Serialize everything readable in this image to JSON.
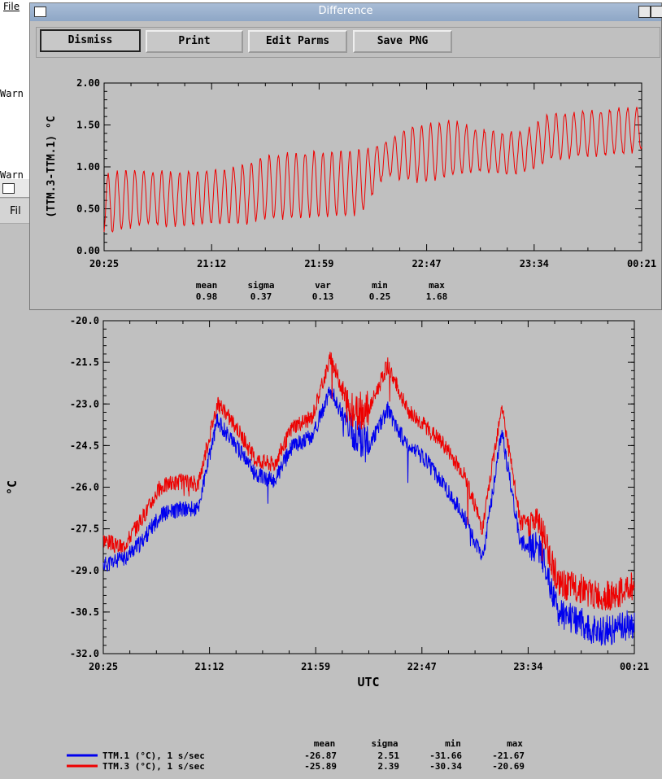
{
  "background_app": {
    "menu_file": "File",
    "warn_1": "Warn",
    "warn_2": "Warn",
    "main_menu_file": "Fil"
  },
  "dialog": {
    "title": "Difference",
    "buttons": {
      "dismiss": "Dismiss",
      "print": "Print",
      "edit_parms": "Edit Parms",
      "save_png": "Save PNG"
    }
  },
  "colors": {
    "ttm1": "#0000ee",
    "ttm3": "#ee0000",
    "plot_bg": "#c0c0c0"
  },
  "chart_data": [
    {
      "type": "line",
      "ylabel": "(TTM.3-TTM.1) °C",
      "xlabel": "",
      "x_ticks": [
        "20:25",
        "21:12",
        "21:59",
        "22:47",
        "23:34",
        "00:21"
      ],
      "y_ticks": [
        "0.00",
        "0.50",
        "1.00",
        "1.50",
        "2.00"
      ],
      "ylim": [
        0,
        2
      ],
      "grid": false,
      "series": [
        {
          "name": "TTM.3-TTM.1",
          "color": "#ee0000",
          "x": [
            "20:25",
            "20:35",
            "20:45",
            "20:55",
            "21:05",
            "21:15",
            "21:25",
            "21:35",
            "21:45",
            "21:55",
            "22:05",
            "22:15",
            "22:25",
            "22:35",
            "22:45",
            "22:55",
            "23:05",
            "23:15",
            "23:25",
            "23:35",
            "23:45",
            "23:55",
            "00:05",
            "00:15"
          ],
          "values": [
            0.55,
            0.62,
            0.63,
            0.62,
            0.63,
            0.64,
            0.68,
            0.75,
            0.78,
            0.8,
            0.8,
            0.82,
            1.1,
            1.15,
            1.18,
            1.22,
            1.2,
            1.15,
            1.18,
            1.35,
            1.38,
            1.4,
            1.42,
            1.45
          ],
          "amplitude": [
            0.35,
            0.35,
            0.32,
            0.32,
            0.32,
            0.32,
            0.35,
            0.38,
            0.38,
            0.38,
            0.38,
            0.38,
            0.2,
            0.32,
            0.35,
            0.33,
            0.25,
            0.25,
            0.25,
            0.27,
            0.27,
            0.27,
            0.27,
            0.25
          ]
        }
      ],
      "stats": {
        "headers": [
          "mean",
          "sigma",
          "var",
          "min",
          "max"
        ],
        "values": [
          "0.98",
          "0.37",
          "0.13",
          "0.25",
          "1.68"
        ]
      }
    },
    {
      "type": "line",
      "ylabel": "°C",
      "xlabel": "UTC",
      "x_ticks": [
        "20:25",
        "21:12",
        "21:59",
        "22:47",
        "23:34",
        "00:21"
      ],
      "y_ticks": [
        "-20.0",
        "-21.5",
        "-23.0",
        "-24.5",
        "-26.0",
        "-27.5",
        "-29.0",
        "-30.5",
        "-32.0"
      ],
      "ylim": [
        -32,
        -20
      ],
      "grid": false,
      "legend_position": "bottom-left",
      "categories": [
        "20:25",
        "20:35",
        "20:45",
        "20:55",
        "21:05",
        "21:10",
        "21:15",
        "21:25",
        "21:35",
        "21:45",
        "21:55",
        "22:05",
        "22:10",
        "22:15",
        "22:25",
        "22:35",
        "22:40",
        "22:45",
        "22:55",
        "23:05",
        "23:10",
        "23:15",
        "23:25",
        "23:35",
        "23:45",
        "23:55",
        "00:05",
        "00:15",
        "00:21"
      ],
      "series": [
        {
          "name": "TTM.1 (°C), 1 s/sec",
          "color": "#0000ee",
          "values": [
            -28.8,
            -28.6,
            -28.0,
            -27.0,
            -26.8,
            -26.8,
            -23.6,
            -24.5,
            -25.5,
            -25.8,
            -24.5,
            -24.2,
            -22.5,
            -24.0,
            -24.5,
            -23.2,
            -24.5,
            -25.0,
            -26.0,
            -27.0,
            -28.6,
            -24.0,
            -28.0,
            -28.2,
            -30.5,
            -30.8,
            -31.2,
            -31.1,
            -30.9
          ]
        },
        {
          "name": "TTM.3 (°C), 1 s/sec",
          "color": "#ee0000",
          "values": [
            -27.9,
            -28.2,
            -27.2,
            -26.0,
            -25.8,
            -25.9,
            -23.0,
            -23.8,
            -25.0,
            -25.2,
            -23.8,
            -23.5,
            -21.3,
            -23.3,
            -23.2,
            -21.6,
            -23.2,
            -23.8,
            -24.5,
            -25.5,
            -27.5,
            -23.0,
            -27.3,
            -27.2,
            -29.5,
            -29.6,
            -29.9,
            -29.9,
            -29.5
          ]
        }
      ],
      "stats": {
        "headers": [
          "mean",
          "sigma",
          "min",
          "max"
        ],
        "rows": [
          {
            "label": "TTM.1 (°C), 1 s/sec",
            "values": [
              "-26.87",
              "2.51",
              "-31.66",
              "-21.67"
            ]
          },
          {
            "label": "TTM.3 (°C), 1 s/sec",
            "values": [
              "-25.89",
              "2.39",
              "-30.34",
              "-20.69"
            ]
          }
        ]
      }
    }
  ]
}
